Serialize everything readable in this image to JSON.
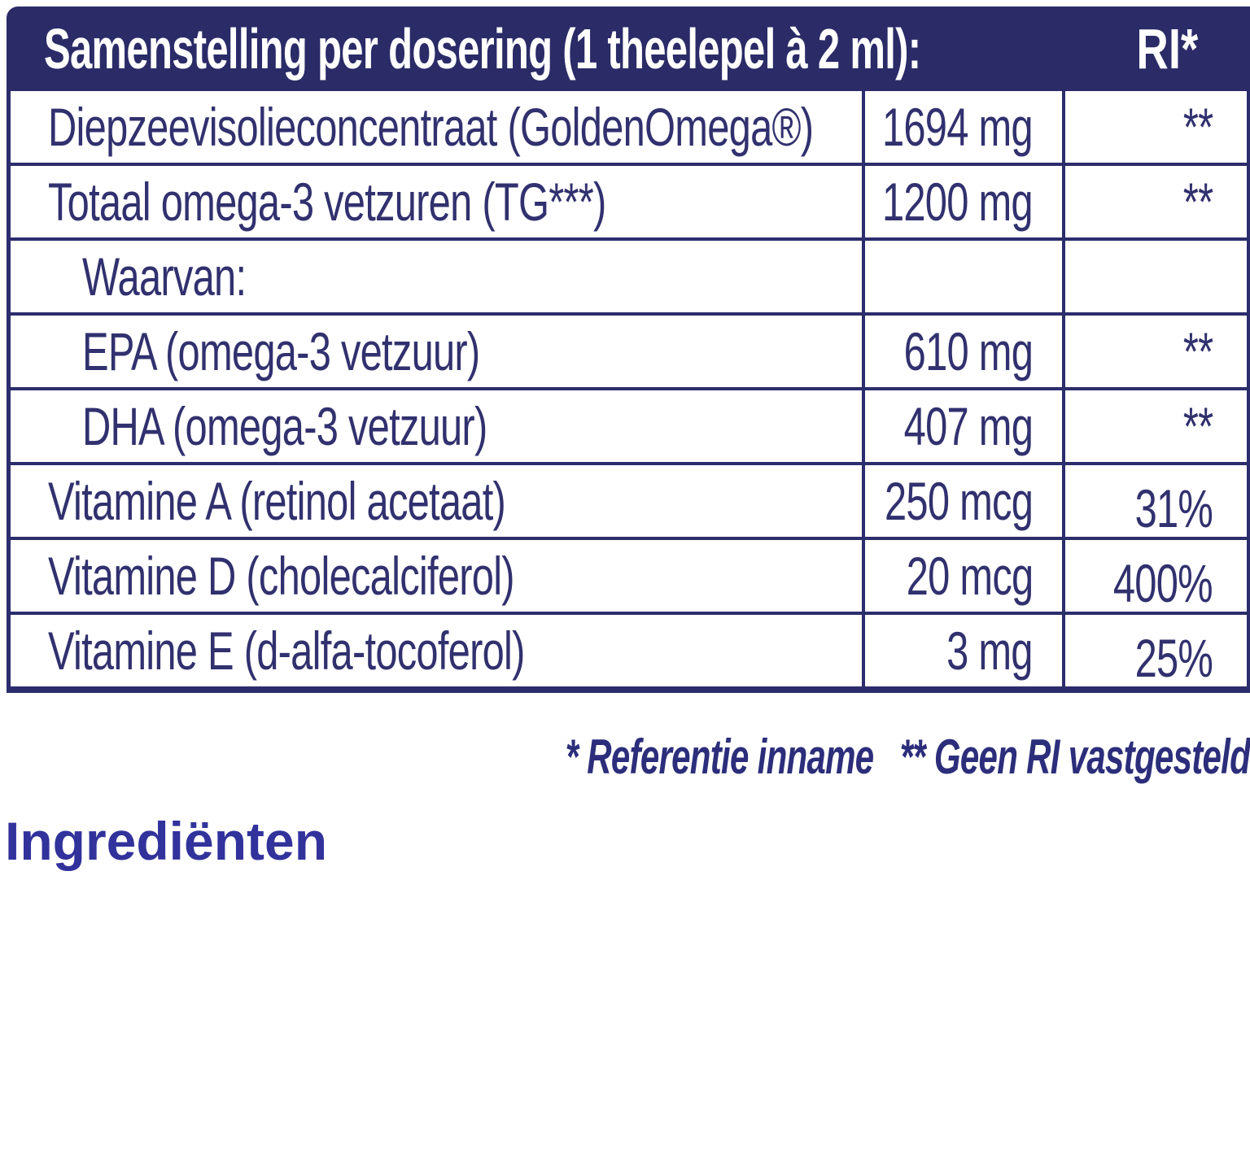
{
  "colors": {
    "navy_border": "#2c2d6c",
    "navy_text": "#31316f",
    "header_bg": "#2a2b67",
    "header_text": "#ffffff",
    "footnote": "#2c2e7b",
    "ingredients": "#32329c",
    "background": "#ffffff"
  },
  "table": {
    "header": {
      "title": "Samenstelling per dosering (1 theelepel à 2 ml):",
      "ri_label": "RI*"
    },
    "rows": [
      {
        "label": "Diepzeevisolieconcentraat (GoldenOmega®)",
        "amount": "1694 mg",
        "ri": "**",
        "indent": false
      },
      {
        "label": "Totaal omega-3 vetzuren (TG***)",
        "amount": "1200 mg",
        "ri": "**",
        "indent": false
      },
      {
        "label": "Waarvan:",
        "amount": "",
        "ri": "",
        "indent": true
      },
      {
        "label": "EPA (omega-3 vetzuur)",
        "amount": "610 mg",
        "ri": "**",
        "indent": true
      },
      {
        "label": "DHA (omega-3 vetzuur)",
        "amount": "407 mg",
        "ri": "**",
        "indent": true
      },
      {
        "label": "Vitamine A (retinol acetaat)",
        "amount": "250 mcg",
        "ri": "31%",
        "indent": false
      },
      {
        "label": "Vitamine D (cholecalciferol)",
        "amount": "20 mcg",
        "ri": "400%",
        "indent": false
      },
      {
        "label": "Vitamine E (d-alfa-tocoferol)",
        "amount": "3 mg",
        "ri": "25%",
        "indent": false
      }
    ]
  },
  "footnote": {
    "reference": "* Referentie inname",
    "no_ri": "** Geen RI vastgesteld"
  },
  "ingredients": {
    "heading": "Ingrediënten"
  }
}
